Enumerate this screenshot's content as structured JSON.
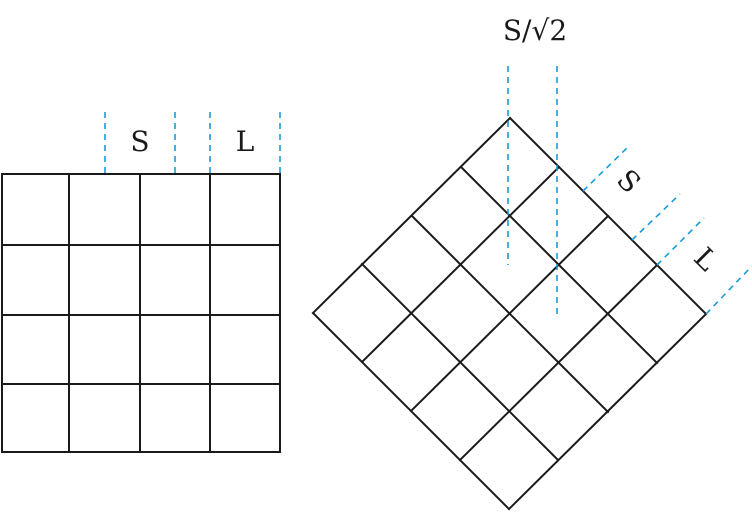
{
  "left_square": {
    "label_s": "S",
    "label_l": "L"
  },
  "rotated_square": {
    "label_top": "S/√2",
    "label_s": "S",
    "label_l": "L"
  }
}
